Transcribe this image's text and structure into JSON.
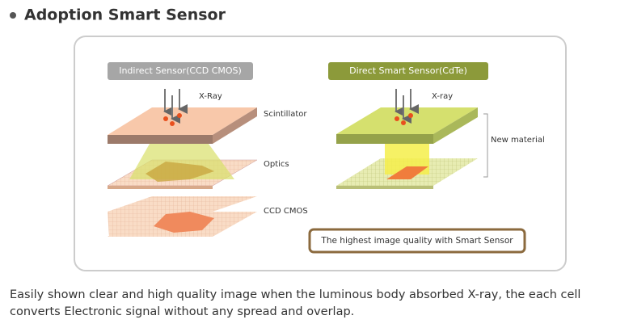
{
  "header": {
    "title": "Adoption Smart Sensor"
  },
  "diagram": {
    "left": {
      "label": "Indirect Sensor(CCD CMOS)",
      "xray": "X-Ray",
      "layers": [
        "Scintillator",
        "Optics",
        "CCD CMOS"
      ]
    },
    "right": {
      "label": "Direct Smart Sensor(CdTe)",
      "xray": "X-ray",
      "annotation": "New material",
      "note": "The highest image quality with Smart Sensor"
    }
  },
  "description": "Easily shown clear and high quality image when the luminous body absorbed X-ray, the each cell converts Electronic signal without any spread and overlap."
}
